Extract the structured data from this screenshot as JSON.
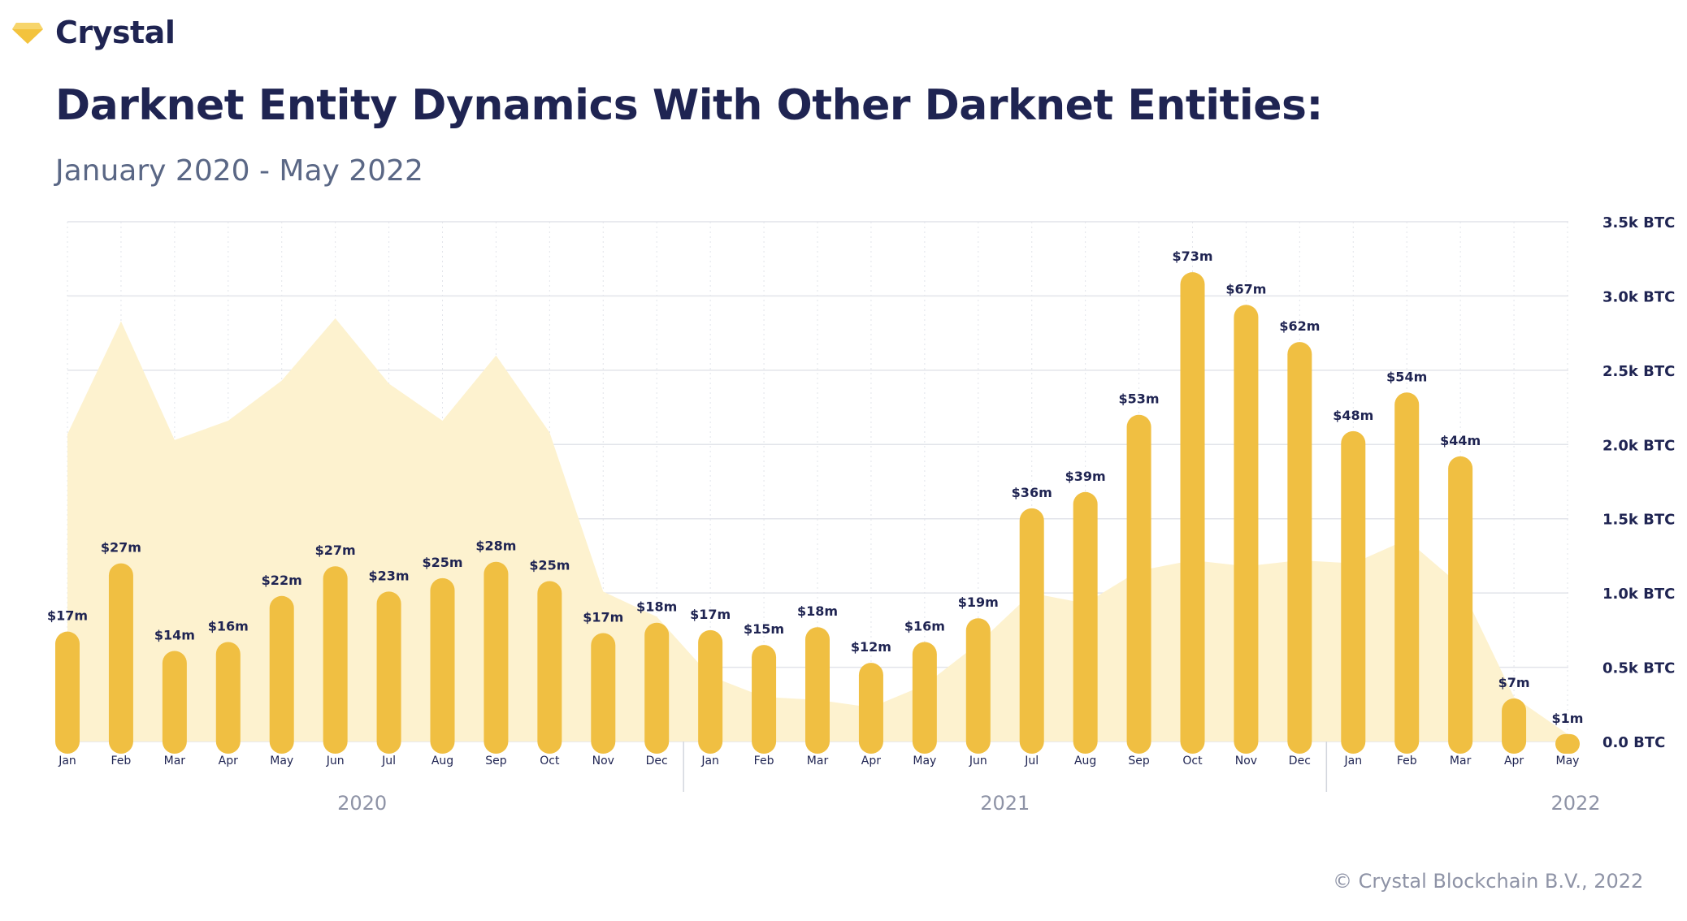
{
  "brand": {
    "name": "Crystal",
    "logo_icon": "diamond-icon",
    "logo_color": "#f3c33d"
  },
  "title": "Darknet Entity Dynamics With Other Darknet Entities:",
  "subtitle": "January 2020 - May 2022",
  "footer": "© Crystal Blockchain B.V., 2022",
  "colors": {
    "bar": "#f0bf42",
    "area": "#fdf2cf",
    "text_dark": "#1f2452",
    "text_muted": "#8e93a6",
    "grid": "#e2e4ea"
  },
  "chart_data": {
    "type": "bar",
    "categories": [
      "Jan",
      "Feb",
      "Mar",
      "Apr",
      "May",
      "Jun",
      "Jul",
      "Aug",
      "Sep",
      "Oct",
      "Nov",
      "Dec",
      "Jan",
      "Feb",
      "Mar",
      "Apr",
      "May",
      "Jun",
      "Jul",
      "Aug",
      "Sep",
      "Oct",
      "Nov",
      "Dec",
      "Jan",
      "Feb",
      "Mar",
      "Apr",
      "May"
    ],
    "year_groups": [
      {
        "label": "2020",
        "start": 0,
        "end": 11
      },
      {
        "label": "2021",
        "start": 12,
        "end": 23
      },
      {
        "label": "2022",
        "start": 24,
        "end": 28
      }
    ],
    "y_axis": {
      "min": 0,
      "max": 3.5,
      "ticks": [
        0,
        0.5,
        1.0,
        1.5,
        2.0,
        2.5,
        3.0,
        3.5
      ],
      "tick_labels": [
        "0.0 BTC",
        "0.5k BTC",
        "1.0k BTC",
        "1.5k BTC",
        "2.0k BTC",
        "2.5k BTC",
        "3.0k BTC",
        "3.5k BTC"
      ],
      "position": "right"
    },
    "grid": true,
    "series": [
      {
        "type": "bar",
        "values": [
          0.74,
          1.2,
          0.61,
          0.67,
          0.98,
          1.18,
          1.01,
          1.1,
          1.21,
          1.08,
          0.73,
          0.8,
          0.75,
          0.65,
          0.77,
          0.53,
          0.67,
          0.83,
          1.57,
          1.68,
          2.2,
          3.16,
          2.94,
          2.69,
          2.09,
          2.35,
          1.92,
          0.29,
          0.05
        ],
        "labels": [
          "$17m",
          "$27m",
          "$14m",
          "$16m",
          "$22m",
          "$27m",
          "$23m",
          "$25m",
          "$28m",
          "$25m",
          "$17m",
          "$18m",
          "$17m",
          "$15m",
          "$18m",
          "$12m",
          "$16m",
          "$19m",
          "$36m",
          "$39m",
          "$53m",
          "$73m",
          "$67m",
          "$62m",
          "$48m",
          "$54m",
          "$44m",
          "$7m",
          "$1m"
        ]
      },
      {
        "type": "area",
        "values": [
          2.07,
          2.83,
          2.03,
          2.16,
          2.43,
          2.85,
          2.41,
          2.16,
          2.6,
          2.08,
          1.01,
          0.84,
          0.44,
          0.3,
          0.28,
          0.23,
          0.38,
          0.66,
          1.0,
          0.93,
          1.15,
          1.22,
          1.18,
          1.22,
          1.2,
          1.36,
          1.05,
          0.3,
          0.05
        ]
      }
    ]
  }
}
